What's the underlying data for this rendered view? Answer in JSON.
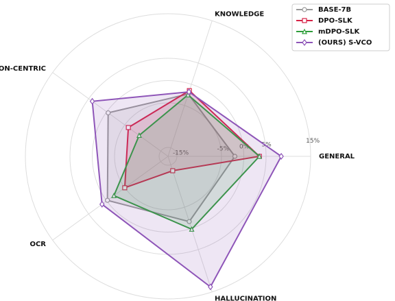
{
  "chart_data": {
    "type": "radar",
    "categories": [
      "GENERAL",
      "KNOWLEDGE",
      "VISION-CENTRIC",
      "OCR",
      "HALLUCINATION"
    ],
    "rlim": [
      -17,
      15
    ],
    "rticks": [
      {
        "value": -15,
        "label": "-15%"
      },
      {
        "value": -5,
        "label": "-5%"
      },
      {
        "value": 0,
        "label": "0%"
      },
      {
        "value": 5,
        "label": "5%"
      },
      {
        "value": 15,
        "label": "15%"
      }
    ],
    "legend": "upper right",
    "series": [
      {
        "name": "BASE-7B",
        "color": "#999999",
        "marker": "circle",
        "values": [
          -2,
          -2.3,
          -0.4,
          -0.2,
          -1.6
        ]
      },
      {
        "name": "DPO-SLK",
        "color": "#d62246",
        "marker": "square",
        "values": [
          3.5,
          -1.5,
          -6,
          -5,
          -13.6
        ]
      },
      {
        "name": "mDPO-SLK",
        "color": "#2e9e3a",
        "marker": "triangle",
        "values": [
          3.5,
          -2.5,
          -9,
          -2,
          0.2
        ]
      },
      {
        "name": "(OURS) S-VCO",
        "color": "#8e55b8",
        "marker": "diamond",
        "values": [
          8.4,
          -1.8,
          4,
          1.3,
          13.8
        ]
      }
    ]
  }
}
